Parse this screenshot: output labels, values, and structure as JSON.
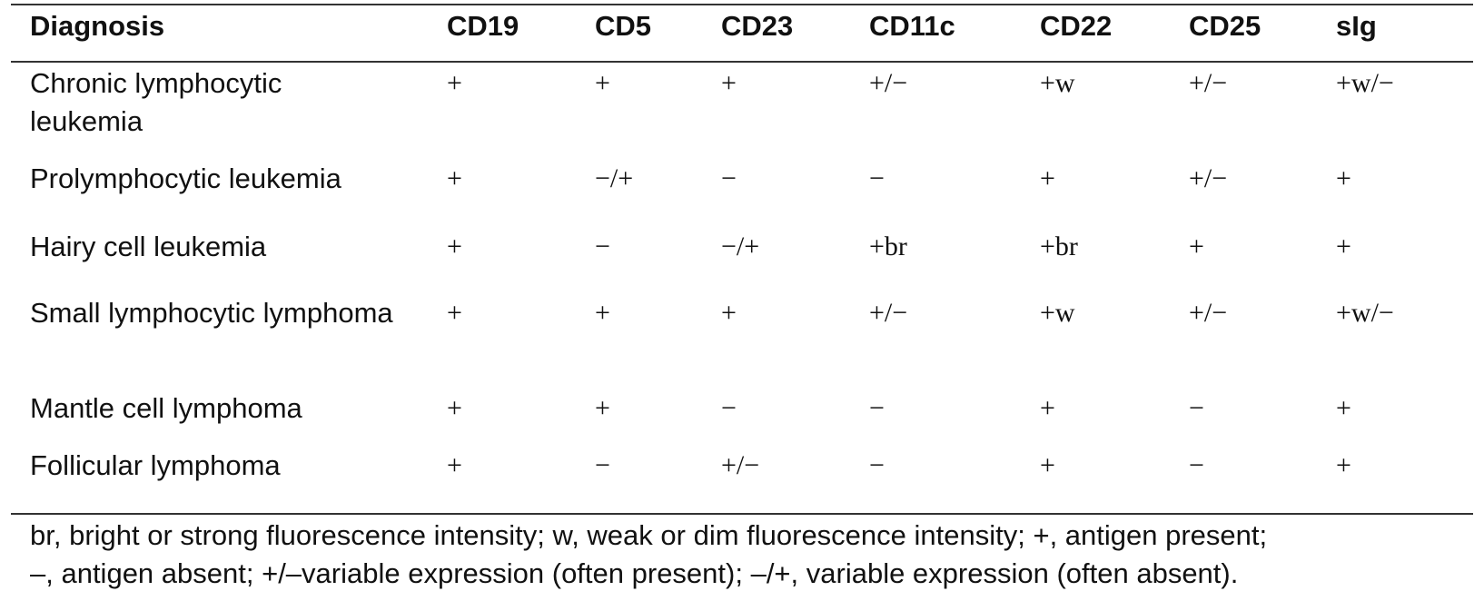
{
  "table": {
    "headers": [
      "Diagnosis",
      "CD19",
      "CD5",
      "CD23",
      "CD11c",
      "CD22",
      "CD25",
      "sIg"
    ],
    "rows": [
      [
        "Chronic lymphocytic leukemia",
        "+",
        "+",
        "+",
        "+/−",
        "+w",
        "+/−",
        "+w/−"
      ],
      [
        "Prolymphocytic leukemia",
        "+",
        "−/+",
        "−",
        "−",
        "+",
        "+/−",
        "+"
      ],
      [
        "Hairy cell leukemia",
        "+",
        "−",
        "−/+",
        "+br",
        "+br",
        "+",
        "+"
      ],
      [
        "Small lymphocytic lymphoma",
        "+",
        "+",
        "+",
        "+/−",
        "+w",
        "+/−",
        "+w/−"
      ],
      [
        "Mantle cell lymphoma",
        "+",
        "+",
        "−",
        "−",
        "+",
        "−",
        "+"
      ],
      [
        "Follicular lymphoma",
        "+",
        "−",
        "+/−",
        "−",
        "+",
        "−",
        "+"
      ]
    ],
    "footnote": [
      "br, bright or strong fluorescence intensity; w, weak or dim fluorescence intensity; +, antigen present;",
      "–, antigen absent; +/–variable expression (often present); –/+, variable expression (often absent)."
    ]
  }
}
